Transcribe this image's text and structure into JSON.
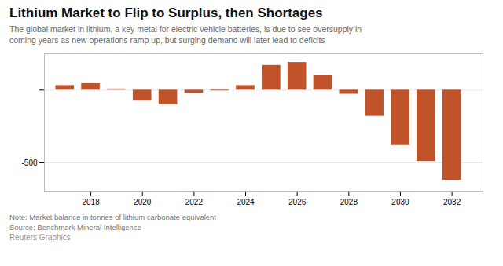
{
  "chart_data": {
    "type": "bar",
    "title": "Lithium Market to Flip to Surplus, then Shortages",
    "subtitle": "The global market in lithium, a key metal for electric vehicle batteries, is due to see oversupply in\ncoming years as new operations ramp up, but surging demand will later lead to deficits",
    "note": "Note: Market balance in tonnes of lithium carbonate equivalent",
    "source": "Source: Benchmark Mineral Intelligence",
    "footer": "Reuters Graphics",
    "x": [
      2017,
      2018,
      2019,
      2020,
      2021,
      2022,
      2023,
      2024,
      2025,
      2026,
      2027,
      2028,
      2029,
      2030,
      2031,
      2032
    ],
    "values": [
      32,
      45,
      8,
      -75,
      -100,
      -22,
      -5,
      32,
      170,
      190,
      100,
      -28,
      -180,
      -380,
      -490,
      -620
    ],
    "color": "#c0532a",
    "xlim": [
      2016.2,
      2033.2
    ],
    "xticks": [
      2018,
      2020,
      2022,
      2024,
      2026,
      2028,
      2030,
      2032
    ],
    "ylim": [
      -700,
      250
    ],
    "yticks": [
      -500,
      {
        "value": 0,
        "label": null
      }
    ],
    "grid": true
  }
}
